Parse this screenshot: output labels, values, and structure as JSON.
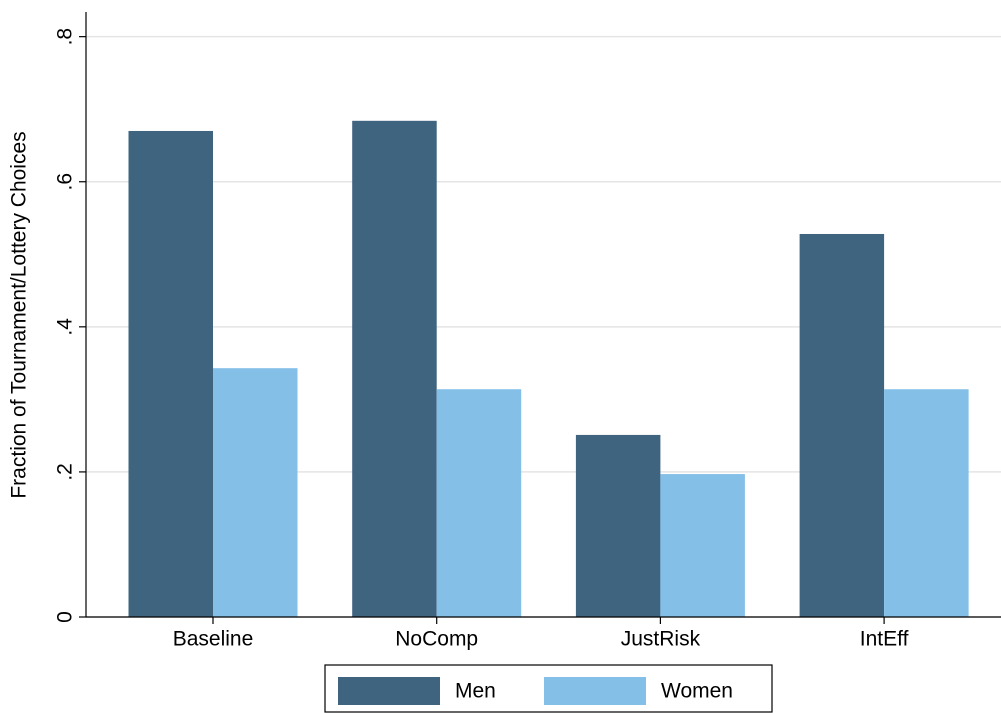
{
  "chart_data": {
    "type": "bar",
    "y_label": "Fraction of Tournament/Lottery Choices",
    "categories": [
      "Baseline",
      "NoComp",
      "JustRisk",
      "IntEff"
    ],
    "series": [
      {
        "name": "Men",
        "color": "#3e6480",
        "values": [
          0.67,
          0.684,
          0.251,
          0.528
        ]
      },
      {
        "name": "Women",
        "color": "#84bfe8",
        "values": [
          0.343,
          0.314,
          0.197,
          0.314
        ]
      }
    ],
    "ylim": [
      0,
      0.834
    ],
    "yticks": [
      0,
      {
        "value": 0.2,
        "label": ".2"
      },
      {
        "value": 0.4,
        "label": ".4"
      },
      {
        "value": 0.6,
        "label": ".6"
      },
      {
        "value": 0.8,
        "label": ".8"
      }
    ],
    "grid": true,
    "legend": "bottom"
  }
}
